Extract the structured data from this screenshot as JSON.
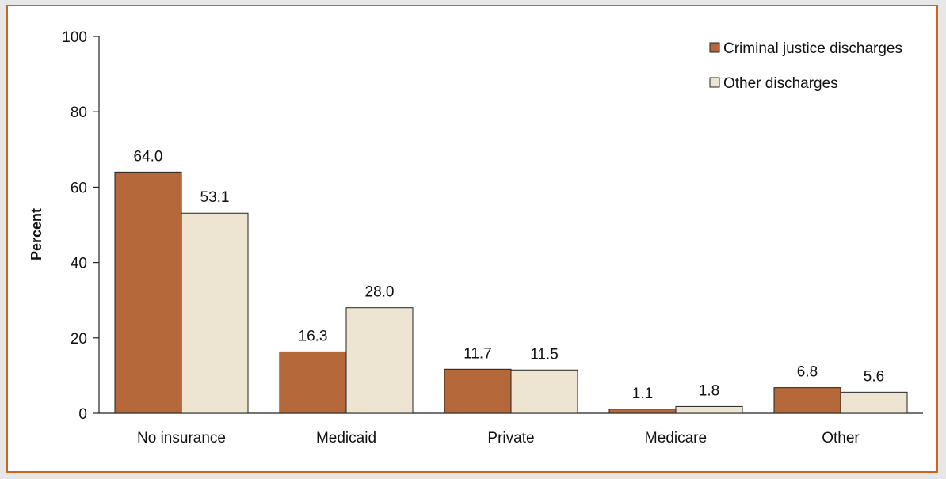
{
  "chart_data": {
    "type": "bar",
    "categories": [
      "No insurance",
      "Medicaid",
      "Private",
      "Medicare",
      "Other"
    ],
    "series": [
      {
        "name": "Criminal justice discharges",
        "values": [
          64.0,
          16.3,
          11.7,
          1.1,
          6.8
        ],
        "labels": [
          "64.0",
          "16.3",
          "11.7",
          "1.1",
          "6.8"
        ],
        "color": "#b5693a"
      },
      {
        "name": "Other discharges",
        "values": [
          53.1,
          28.0,
          11.5,
          1.8,
          5.6
        ],
        "labels": [
          "53.1",
          "28.0",
          "11.5",
          "1.8",
          "5.6"
        ],
        "color": "#ede5d2"
      }
    ],
    "ylabel": "Percent",
    "xlabel": "",
    "ylim": [
      0,
      100
    ],
    "yticks": [
      "0",
      "20",
      "40",
      "60",
      "80",
      "100"
    ],
    "grid": false,
    "legend": "top-right",
    "frame_border_color": "#c9671f",
    "page_background": "#e7e7e7"
  }
}
